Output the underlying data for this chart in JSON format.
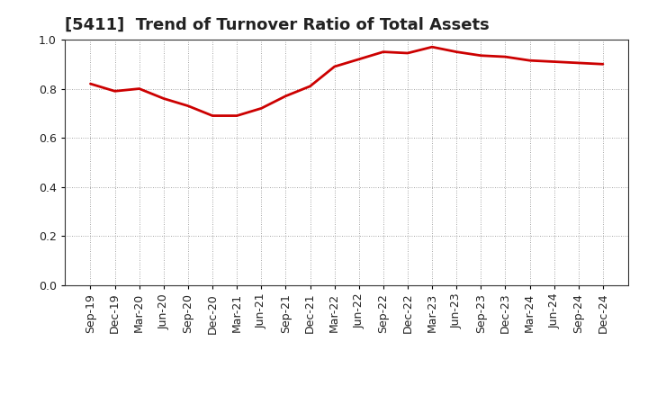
{
  "title": "[5411]  Trend of Turnover Ratio of Total Assets",
  "x_labels": [
    "Sep-19",
    "Dec-19",
    "Mar-20",
    "Jun-20",
    "Sep-20",
    "Dec-20",
    "Mar-21",
    "Jun-21",
    "Sep-21",
    "Dec-21",
    "Mar-22",
    "Jun-22",
    "Sep-22",
    "Dec-22",
    "Mar-23",
    "Jun-23",
    "Sep-23",
    "Dec-23",
    "Mar-24",
    "Jun-24",
    "Sep-24",
    "Dec-24"
  ],
  "y_values": [
    0.82,
    0.79,
    0.8,
    0.76,
    0.73,
    0.69,
    0.69,
    0.72,
    0.77,
    0.81,
    0.89,
    0.92,
    0.95,
    0.945,
    0.97,
    0.95,
    0.935,
    0.93,
    0.915,
    0.91,
    0.905,
    0.9
  ],
  "line_color": "#cc0000",
  "line_width": 2.0,
  "ylim": [
    0.0,
    1.0
  ],
  "yticks": [
    0.0,
    0.2,
    0.4,
    0.6,
    0.8,
    1.0
  ],
  "background_color": "#ffffff",
  "grid_color": "#888888",
  "title_fontsize": 13,
  "tick_fontsize": 9
}
